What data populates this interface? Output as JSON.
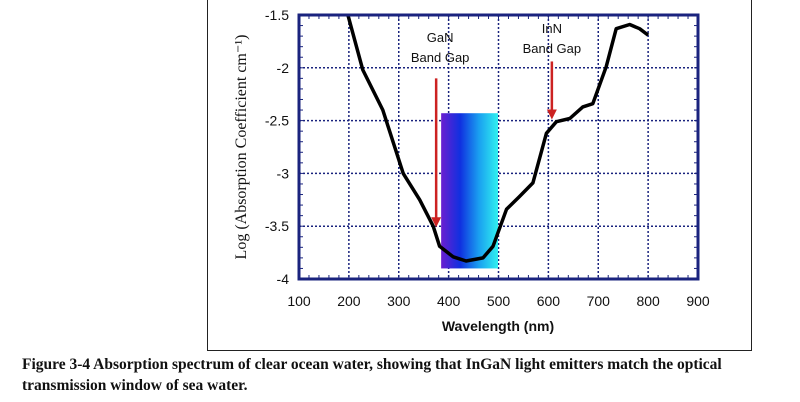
{
  "chart_data": {
    "type": "line",
    "xlabel": "Wavelength (nm)",
    "ylabel": "Log (Absorption Coefficient cm⁻¹)",
    "xlim": [
      100,
      900
    ],
    "ylim": [
      -4,
      -1.5
    ],
    "xticks": [
      "100",
      "200",
      "300",
      "400",
      "500",
      "600",
      "700",
      "800",
      "900"
    ],
    "yticks": [
      "-1.5",
      "-2",
      "-2.5",
      "-3",
      "-3.5",
      "-4"
    ],
    "grid": true,
    "series": [
      {
        "color": "#000000",
        "x": [
          198,
          228,
          268,
          309,
          342,
          369,
          382,
          409,
          435,
          469,
          489,
          516,
          542,
          569,
          596,
          616,
          643,
          669,
          689,
          716,
          736,
          763,
          783,
          800
        ],
        "y": [
          -1.5,
          -2.02,
          -2.4,
          -3.0,
          -3.25,
          -3.5,
          -3.69,
          -3.79,
          -3.83,
          -3.8,
          -3.69,
          -3.34,
          -3.22,
          -3.09,
          -2.62,
          -2.51,
          -2.48,
          -2.37,
          -2.34,
          -1.99,
          -1.63,
          -1.59,
          -1.63,
          -1.69
        ]
      }
    ],
    "spectrum_band": {
      "x": [
        385,
        499
      ],
      "y": [
        -3.9,
        -2.43
      ],
      "colors": [
        "#6a1fd0",
        "#1030e0",
        "#1aa0f0",
        "#30f0f0"
      ]
    },
    "annotations": [
      {
        "line1": "GaN",
        "line2": "Band Gap",
        "arrow_x": 375,
        "arrow_y": [
          -2.1,
          -3.5
        ],
        "text_x": 383,
        "color": "#cc2222"
      },
      {
        "line1": "InN",
        "line2": "Band Gap",
        "arrow_x": 607,
        "arrow_y": [
          -1.94,
          -2.48
        ],
        "text_x": 607,
        "color": "#cc2222"
      }
    ],
    "grid_color": "#1a237e"
  },
  "caption": {
    "text": "Figure 3-4  Absorption spectrum of clear ocean water, showing that InGaN light emitters match the optical transmission window of sea water."
  }
}
